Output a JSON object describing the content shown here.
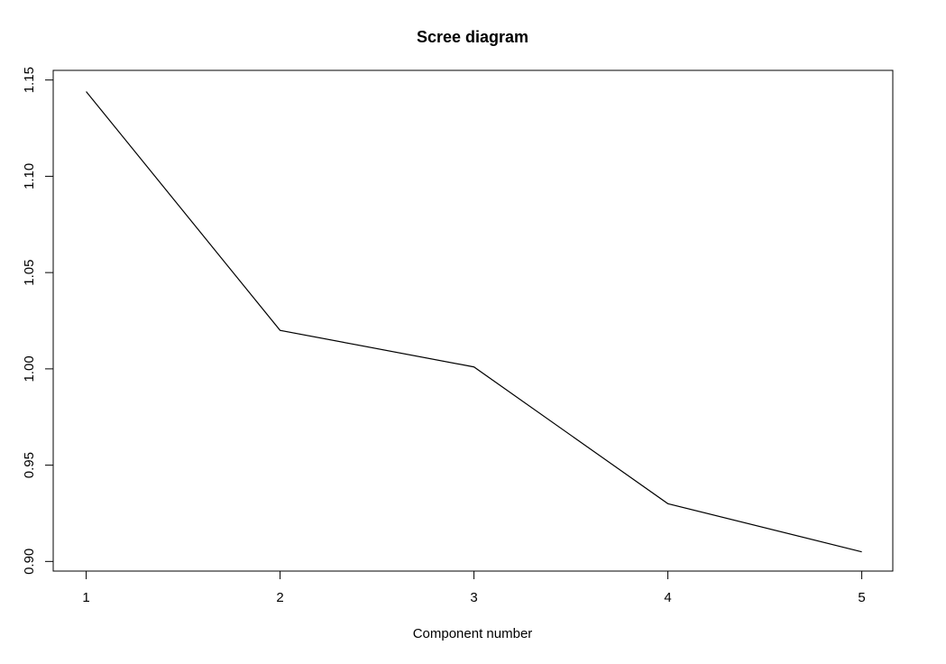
{
  "chart_data": {
    "type": "line",
    "title": "Scree diagram",
    "xlabel": "Component number",
    "ylabel": "",
    "x": [
      1,
      2,
      3,
      4,
      5
    ],
    "series": [
      {
        "values": [
          1.144,
          1.02,
          1.001,
          0.93,
          0.905
        ]
      }
    ],
    "xlim": [
      0.83,
      5.16
    ],
    "ylim": [
      0.895,
      1.155
    ],
    "x_ticks": [
      1,
      2,
      3,
      4,
      5
    ],
    "y_ticks": [
      0.9,
      0.95,
      1.0,
      1.05,
      1.1,
      1.15
    ],
    "x_tick_labels": [
      "1",
      "2",
      "3",
      "4",
      "5"
    ],
    "y_tick_labels": [
      "0.90",
      "0.95",
      "1.00",
      "1.05",
      "1.10",
      "1.15"
    ],
    "grid": false,
    "line_color": "#000000"
  }
}
